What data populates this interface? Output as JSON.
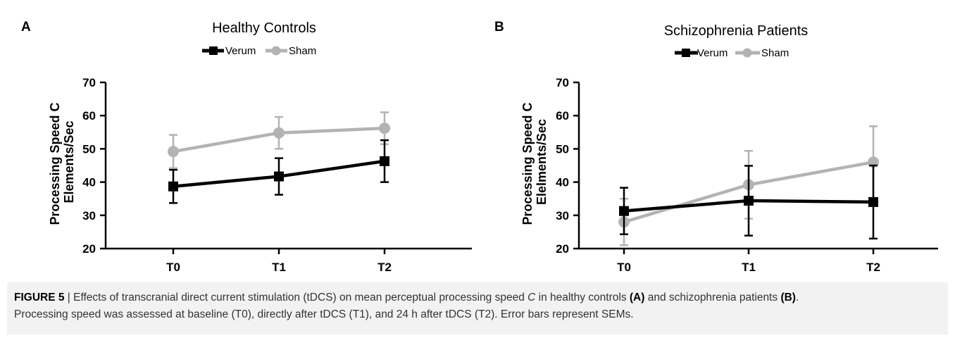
{
  "chart_data": [
    {
      "type": "line",
      "panel_label": "A",
      "title": "Healthy Controls",
      "categories": [
        "T0",
        "T1",
        "T2"
      ],
      "ylabel": [
        "Processing Speed C",
        "Elements/Sec"
      ],
      "ylim": [
        20,
        70
      ],
      "yticks": [
        20,
        30,
        40,
        50,
        60,
        70
      ],
      "legend_position": "top-center",
      "series": [
        {
          "name": "Verum",
          "color": "#000000",
          "marker": "square",
          "values": [
            38.7,
            41.7,
            46.3
          ],
          "errors": [
            5.0,
            5.5,
            6.3
          ]
        },
        {
          "name": "Sham",
          "color": "#b3b3b3",
          "marker": "circle",
          "values": [
            49.2,
            54.8,
            56.2
          ],
          "errors": [
            5.0,
            4.8,
            4.8
          ]
        }
      ]
    },
    {
      "type": "line",
      "panel_label": "B",
      "title": "Schizophrenia Patients",
      "categories": [
        "T0",
        "T1",
        "T2"
      ],
      "ylabel": [
        "Processing Speed C",
        "Elelments/Sec"
      ],
      "ylim": [
        20,
        70
      ],
      "yticks": [
        20,
        30,
        40,
        50,
        60,
        70
      ],
      "legend_position": "top-center",
      "series": [
        {
          "name": "Verum",
          "color": "#000000",
          "marker": "square",
          "values": [
            31.3,
            34.4,
            34.0
          ],
          "errors": [
            7.0,
            10.5,
            11.0
          ]
        },
        {
          "name": "Sham",
          "color": "#b3b3b3",
          "marker": "circle",
          "values": [
            28.0,
            39.2,
            46.0
          ],
          "errors": [
            7.0,
            10.2,
            10.8
          ]
        }
      ]
    }
  ],
  "caption": {
    "figure_label": "FIGURE 5",
    "separator": " | ",
    "part1": "Effects of transcranial direct current stimulation (tDCS) on mean perceptual processing speed ",
    "var": "C",
    "part2": " in healthy controls ",
    "ref_a": "(A)",
    "part3": " and schizophrenia patients ",
    "ref_b": "(B)",
    "part4": ".",
    "line2": "Processing speed was assessed at baseline (T0), directly after tDCS (T1), and 24 h after tDCS (T2). Error bars represent SEMs."
  }
}
